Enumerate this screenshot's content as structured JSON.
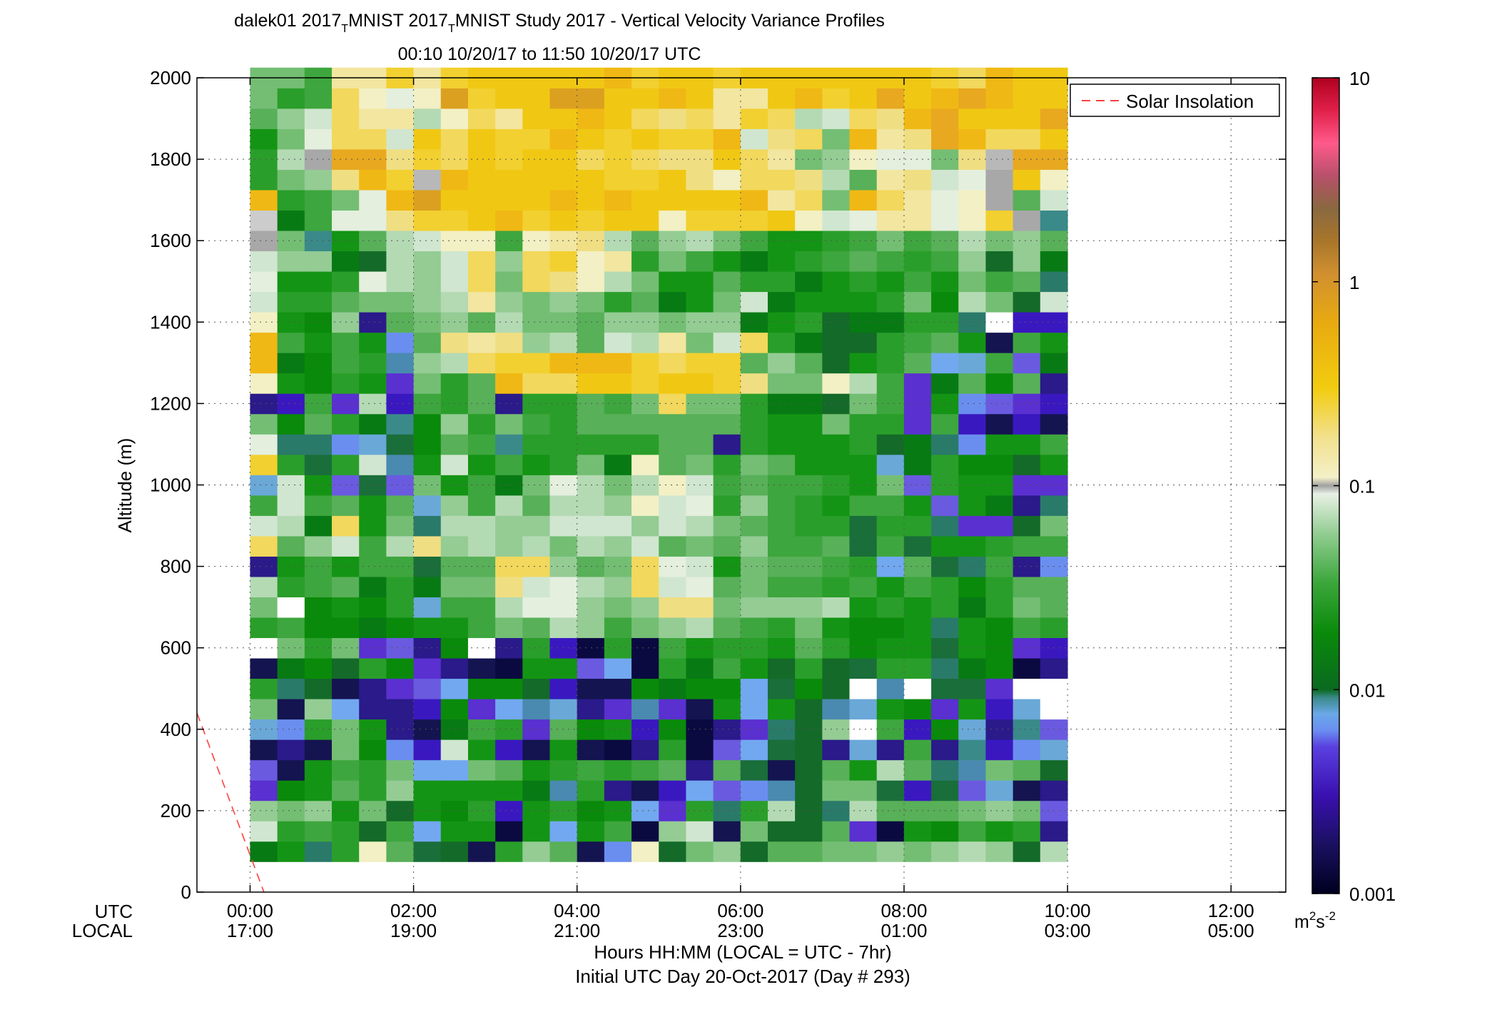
{
  "title": {
    "line1_part1": "dalek01 2017",
    "line1_sub1": "T",
    "line1_part2": "MNIST 2017",
    "line1_sub2": "T",
    "line1_part3": "MNIST Study 2017 - Vertical Velocity Variance Profiles",
    "line2": "00:10 10/20/17 to 11:50 10/20/17  UTC"
  },
  "ylabel": "Altitude (m)",
  "x_row_labels": {
    "utc": "UTC",
    "local": "LOCAL"
  },
  "xlabel_line1": "Hours HH:MM  (LOCAL = UTC - 7hr)",
  "xlabel_line2": "Initial UTC Day 20-Oct-2017 (Day # 293)",
  "legend": {
    "label": "Solar Insolation",
    "line_color": "#ff4040",
    "placement": "top-right"
  },
  "colorbar": {
    "scale": "log",
    "ticks": [
      "10",
      "1",
      "0.1",
      "0.01",
      "0.001"
    ],
    "unit_base": "m",
    "unit_sup1": "2",
    "unit_mid": "s",
    "unit_sup2": "-2"
  },
  "chart_data": {
    "type": "heatmap",
    "x_unit": "hours UTC",
    "y_unit": "m",
    "xlim": [
      -0.65,
      12.67
    ],
    "ylim": [
      0,
      2000
    ],
    "clim": [
      0.001,
      10
    ],
    "color_scale": "log",
    "grid": true,
    "x_ticks": [
      {
        "utc": "00:00",
        "local": "17:00",
        "value": 0
      },
      {
        "utc": "02:00",
        "local": "19:00",
        "value": 2
      },
      {
        "utc": "04:00",
        "local": "21:00",
        "value": 4
      },
      {
        "utc": "06:00",
        "local": "23:00",
        "value": 6
      },
      {
        "utc": "08:00",
        "local": "01:00",
        "value": 8
      },
      {
        "utc": "10:00",
        "local": "03:00",
        "value": 10
      },
      {
        "utc": "12:00",
        "local": "05:00",
        "value": 12
      }
    ],
    "y_ticks": [
      "0",
      "200",
      "400",
      "600",
      "800",
      "1000",
      "1200",
      "1400",
      "1600",
      "1800",
      "2000"
    ],
    "x_start_hours": 0.1667,
    "x_step_hours": 0.3333,
    "y_start_m": 100,
    "y_step_m": 50,
    "series": [
      {
        "name": "Solar Insolation",
        "x": [
          -0.65,
          0.17
        ],
        "y": [
          440,
          0
        ]
      }
    ],
    "values_log10": [
      "CKIMOIIHEKAEHJNPKFFQLHFMSSMKLKWXSEEDGHH",
      "DEHBGDFIDCHFAEDGJKKEIBIDCFDEDIHCEHJHIEH",
      "IFIDDCEIFBEBBFFICFDCCGFBBDBEDIHFFIWLKFF",
      "EEDGFHHBEEHBDGDKPGHEJEJEFFIGECDLHOTPPPN",
      "MEHEEBDBBEBCBCFFDDIKDCJDEDDHLEGLLSTPNMN",
      "GFDIHIDDBBFBEEFJHGEEDDEFGHGHJJJOSQOKNLQ",
      "IFDDHCEADCJDHCLOIIHDBBFHIGHIIIKQUVQRJMN",
      "JDBDBKCBBFBDFHGIJIDKGIEEJOIJKKMQRSPPMUQ",
      "DDEDHDFCBHAFFHGJJFFDFEGGPNGNPPMRRRRRPQR",
      "EIDDGHEFBFEHJOPIIJCFEHHSQOJIHIFSRRQQNRR",
      "IDDCDHEFDDEGLKPJIGHDEFEPQIHHPPMQRRRQRRR",
      "GEEEEDGCEDCJLLIHKJLEEEEPSJHIOQNRSRRSRUR",
      "GDBEFBBDBFHIIJGJKJJHEGGRSGGHMMOQRRPRSUR",
      "HFDEEDDHBDEFHIHIKIHCEGFRSKIEJNJRSQQQRRS",
      "MMDGFBEBBFHHIPPKIMJMEGHQQJIGHEGRRQPRPRQ",
      "HIEDGEBBCEFIOKLGKKMGGGPRPNHCDHIMRROQOSR",
      "HKEGHFEDBCDJOLKHJLKHGGHRQHIDDFJQROOQPRR",
      "IHEGGFDDBFEGHGDGHEFEDGHQQKIHGDHQRMRSNNQ",
      "GHEIGIEDFDEFIHHIGIGHEEEOGPCKECFQSPPKQNR",
      "GGJHHGEDDFDEIFGFFFFGDDCHIEDCEDDRNPNOPRR",
      "GFHIHGIBBEGHIFGFEEFDDDCHGCEDCEDMPOHPJSR",
      "HGIHGDICCIEDJEFGEDEDDHHMIDGDDFEKHJIHKQR",
      "HEJHDCAAABBBDFEEDFDDEEHJDDCDEGFLSGMSPRR",
      "IEGIJDFDBEDBEDDFEFHECEFFEECEDFHNPNLNOTR",
      "HDGHGFEBAEDDDFGHEDJCCEFGGFEHFEFNNOLOSRR",
      "IBGHGIBBBDDEEEDDFCEEDFDCEGEBDFGLLKHTTSQ",
      "JFHHIBEDFCDDCBDDDDDBDFCGDDDJHIJMMLOSRTP",
      "IDIFHGAAABBBEEFECCDBDFCBFLAHFGHQWWVPRSS",
      "IEHEGDBAAFDFHGEFHFDCDCEGEFGBGIIWGRTPRRR",
      "JDHDGDAAAFEEGGFFHFGDFDGGCDCKECGKKMTRTRR"
    ],
    "palette": {
      "A": "#ffffff",
      "B": "#0a8a0a",
      "C": "#087a14",
      "D": "#149414",
      "E": "#2a9e2a",
      "F": "#3ea63e",
      "G": "#58b058",
      "H": "#74be74",
      "I": "#94cc94",
      "J": "#b4dab4",
      "K": "#d0e6d0",
      "L": "#e4efde",
      "M": "#f2f0c4",
      "N": "#f2e6a0",
      "O": "#f0de82",
      "P": "#f2d85c",
      "Q": "#f2d030",
      "R": "#f0c814",
      "S": "#f0b814",
      "T": "#e8a820",
      "U": "#dca020",
      "V": "#b8b8b8",
      "W": "#a8a8a8",
      "X": "#cccccc",
      "a": "#0a0a40",
      "b": "#141450",
      "c": "#2a1a8a",
      "d": "#3a18c0",
      "e": "#5a30d0",
      "f": "#6a5ae0",
      "g": "#6a8ef0",
      "h": "#72a8f0",
      "i": "#6aa8d8",
      "j": "#4a8ab0",
      "k": "#3a8a8a",
      "l": "#2a7a6a",
      "m": "#1a6e3a",
      "n": "#146a28"
    },
    "overrides": [
      [
        0,
        14,
        "c"
      ],
      [
        0,
        18,
        "i"
      ],
      [
        0,
        22,
        "c"
      ],
      [
        0,
        6,
        "i"
      ],
      [
        0,
        9,
        "b"
      ],
      [
        0,
        3,
        "e"
      ],
      [
        0,
        4,
        "f"
      ],
      [
        0,
        5,
        "b"
      ],
      [
        1,
        4,
        "b"
      ],
      [
        1,
        6,
        "g"
      ],
      [
        1,
        7,
        "b"
      ],
      [
        1,
        8,
        "l"
      ],
      [
        1,
        5,
        "c"
      ],
      [
        1,
        20,
        "l"
      ],
      [
        1,
        22,
        "d"
      ],
      [
        2,
        0,
        "l"
      ],
      [
        2,
        5,
        "b"
      ],
      [
        2,
        8,
        "n"
      ],
      [
        2,
        19,
        "m"
      ],
      [
        2,
        20,
        "l"
      ],
      [
        2,
        30,
        "k"
      ],
      [
        3,
        7,
        "h"
      ],
      [
        3,
        8,
        "b"
      ],
      [
        3,
        18,
        "f"
      ],
      [
        3,
        20,
        "g"
      ],
      [
        3,
        22,
        "e"
      ],
      [
        3,
        9,
        "n"
      ],
      [
        4,
        1,
        "n"
      ],
      [
        4,
        7,
        "c"
      ],
      [
        4,
        8,
        "c"
      ],
      [
        4,
        10,
        "e"
      ],
      [
        4,
        18,
        "m"
      ],
      [
        4,
        20,
        "i"
      ],
      [
        4,
        26,
        "c"
      ],
      [
        4,
        29,
        "n"
      ],
      [
        5,
        2,
        "n"
      ],
      [
        5,
        5,
        "g"
      ],
      [
        5,
        6,
        "c"
      ],
      [
        5,
        7,
        "c"
      ],
      [
        5,
        8,
        "e"
      ],
      [
        5,
        10,
        "f"
      ],
      [
        5,
        18,
        "f"
      ],
      [
        5,
        19,
        "j"
      ],
      [
        5,
        20,
        "m"
      ],
      [
        5,
        21,
        "k"
      ],
      [
        5,
        22,
        "d"
      ],
      [
        5,
        23,
        "e"
      ],
      [
        5,
        24,
        "j"
      ],
      [
        5,
        25,
        "g"
      ],
      [
        6,
        0,
        "m"
      ],
      [
        6,
        1,
        "h"
      ],
      [
        6,
        4,
        "h"
      ],
      [
        6,
        5,
        "d"
      ],
      [
        6,
        6,
        "b"
      ],
      [
        6,
        7,
        "d"
      ],
      [
        6,
        8,
        "f"
      ],
      [
        6,
        9,
        "e"
      ],
      [
        6,
        10,
        "c"
      ],
      [
        6,
        12,
        "i"
      ],
      [
        6,
        14,
        "m"
      ],
      [
        6,
        16,
        "l"
      ],
      [
        6,
        17,
        "i"
      ],
      [
        7,
        0,
        "n"
      ],
      [
        7,
        4,
        "h"
      ],
      [
        7,
        8,
        "h"
      ],
      [
        7,
        9,
        "c"
      ],
      [
        8,
        0,
        "b"
      ],
      [
        8,
        7,
        "e"
      ],
      [
        8,
        9,
        "b"
      ],
      [
        9,
        1,
        "a"
      ],
      [
        9,
        2,
        "d"
      ],
      [
        9,
        5,
        "d"
      ],
      [
        9,
        7,
        "h"
      ],
      [
        9,
        9,
        "a"
      ],
      [
        9,
        10,
        "c"
      ],
      [
        9,
        20,
        "k"
      ],
      [
        9,
        22,
        "c"
      ],
      [
        10,
        5,
        "b"
      ],
      [
        10,
        6,
        "e"
      ],
      [
        10,
        7,
        "j"
      ],
      [
        10,
        8,
        "n"
      ],
      [
        11,
        1,
        "h"
      ],
      [
        11,
        3,
        "j"
      ],
      [
        11,
        7,
        "i"
      ],
      [
        11,
        8,
        "d"
      ],
      [
        11,
        10,
        "d"
      ],
      [
        12,
        0,
        "b"
      ],
      [
        12,
        5,
        "b"
      ],
      [
        12,
        7,
        "c"
      ],
      [
        12,
        8,
        "b"
      ],
      [
        12,
        9,
        "f"
      ],
      [
        12,
        10,
        "a"
      ],
      [
        13,
        0,
        "g"
      ],
      [
        13,
        3,
        "c"
      ],
      [
        13,
        5,
        "a"
      ],
      [
        13,
        7,
        "e"
      ],
      [
        13,
        8,
        "b"
      ],
      [
        13,
        9,
        "h"
      ],
      [
        14,
        1,
        "a"
      ],
      [
        14,
        2,
        "h"
      ],
      [
        14,
        3,
        "b"
      ],
      [
        14,
        5,
        "c"
      ],
      [
        14,
        6,
        "d"
      ],
      [
        14,
        7,
        "j"
      ],
      [
        14,
        9,
        "a"
      ],
      [
        14,
        10,
        "a"
      ],
      [
        15,
        0,
        "n"
      ],
      [
        15,
        2,
        "e"
      ],
      [
        15,
        3,
        "d"
      ],
      [
        15,
        7,
        "e"
      ],
      [
        16,
        3,
        "h"
      ],
      [
        16,
        4,
        "c"
      ],
      [
        16,
        5,
        "a"
      ],
      [
        16,
        6,
        "a"
      ],
      [
        16,
        7,
        "b"
      ],
      [
        17,
        1,
        "b"
      ],
      [
        17,
        2,
        "l"
      ],
      [
        17,
        3,
        "f"
      ],
      [
        17,
        5,
        "f"
      ],
      [
        17,
        6,
        "c"
      ],
      [
        17,
        20,
        "c"
      ],
      [
        18,
        0,
        "n"
      ],
      [
        18,
        3,
        "g"
      ],
      [
        18,
        4,
        "m"
      ],
      [
        18,
        5,
        "h"
      ],
      [
        18,
        6,
        "e"
      ],
      [
        18,
        7,
        "h"
      ],
      [
        18,
        8,
        "h"
      ],
      [
        19,
        1,
        "n"
      ],
      [
        19,
        3,
        "j"
      ],
      [
        19,
        4,
        "b"
      ],
      [
        19,
        5,
        "m"
      ],
      [
        19,
        6,
        "l"
      ],
      [
        19,
        8,
        "m"
      ],
      [
        19,
        9,
        "n"
      ],
      [
        20,
        1,
        "n"
      ],
      [
        20,
        2,
        "n"
      ],
      [
        20,
        3,
        "n"
      ],
      [
        20,
        4,
        "n"
      ],
      [
        20,
        5,
        "n"
      ],
      [
        20,
        6,
        "n"
      ],
      [
        20,
        7,
        "n"
      ],
      [
        21,
        2,
        "l"
      ],
      [
        21,
        5,
        "c"
      ],
      [
        21,
        7,
        "j"
      ],
      [
        21,
        8,
        "n"
      ],
      [
        21,
        9,
        "n"
      ],
      [
        21,
        22,
        "n"
      ],
      [
        21,
        24,
        "n"
      ],
      [
        21,
        25,
        "n"
      ],
      [
        21,
        26,
        "n"
      ],
      [
        22,
        1,
        "e"
      ],
      [
        22,
        5,
        "i"
      ],
      [
        22,
        7,
        "i"
      ],
      [
        22,
        9,
        "m"
      ],
      [
        22,
        15,
        "m"
      ],
      [
        22,
        16,
        "m"
      ],
      [
        22,
        25,
        "n"
      ],
      [
        23,
        1,
        "a"
      ],
      [
        23,
        3,
        "m"
      ],
      [
        23,
        5,
        "c"
      ],
      [
        23,
        8,
        "j"
      ],
      [
        23,
        14,
        "h"
      ],
      [
        23,
        19,
        "i"
      ],
      [
        23,
        20,
        "n"
      ],
      [
        24,
        3,
        "d"
      ],
      [
        24,
        6,
        "d"
      ],
      [
        24,
        15,
        "m"
      ],
      [
        24,
        18,
        "f"
      ],
      [
        24,
        21,
        "e"
      ],
      [
        24,
        22,
        "e"
      ],
      [
        24,
        23,
        "e"
      ],
      [
        25,
        3,
        "m"
      ],
      [
        25,
        4,
        "l"
      ],
      [
        25,
        5,
        "c"
      ],
      [
        25,
        7,
        "e"
      ],
      [
        25,
        8,
        "m"
      ],
      [
        25,
        9,
        "l"
      ],
      [
        25,
        10,
        "m"
      ],
      [
        25,
        11,
        "l"
      ],
      [
        25,
        14,
        "m"
      ],
      [
        25,
        16,
        "l"
      ],
      [
        25,
        17,
        "f"
      ],
      [
        25,
        20,
        "l"
      ],
      [
        25,
        24,
        "h"
      ],
      [
        26,
        3,
        "f"
      ],
      [
        26,
        4,
        "j"
      ],
      [
        26,
        5,
        "k"
      ],
      [
        26,
        6,
        "i"
      ],
      [
        26,
        8,
        "m"
      ],
      [
        26,
        14,
        "l"
      ],
      [
        26,
        16,
        "e"
      ],
      [
        26,
        20,
        "g"
      ],
      [
        26,
        21,
        "d"
      ],
      [
        26,
        22,
        "g"
      ],
      [
        26,
        24,
        "i"
      ],
      [
        26,
        26,
        "l"
      ],
      [
        27,
        3,
        "i"
      ],
      [
        27,
        5,
        "d"
      ],
      [
        27,
        6,
        "c"
      ],
      [
        27,
        7,
        "d"
      ],
      [
        27,
        8,
        "e"
      ],
      [
        27,
        16,
        "e"
      ],
      [
        27,
        21,
        "b"
      ],
      [
        27,
        22,
        "f"
      ],
      [
        27,
        25,
        "b"
      ],
      [
        27,
        29,
        "n"
      ],
      [
        28,
        0,
        "n"
      ],
      [
        28,
        3,
        "b"
      ],
      [
        28,
        5,
        "g"
      ],
      [
        28,
        6,
        "k"
      ],
      [
        28,
        7,
        "i"
      ],
      [
        28,
        9,
        "a"
      ],
      [
        28,
        10,
        "e"
      ],
      [
        28,
        14,
        "c"
      ],
      [
        28,
        16,
        "n"
      ],
      [
        28,
        17,
        "c"
      ],
      [
        28,
        18,
        "e"
      ],
      [
        28,
        19,
        "n"
      ],
      [
        28,
        21,
        "d"
      ],
      [
        28,
        22,
        "e"
      ],
      [
        28,
        24,
        "f"
      ],
      [
        28,
        26,
        "d"
      ],
      [
        28,
        27,
        "n"
      ],
      [
        29,
        1,
        "c"
      ],
      [
        29,
        2,
        "f"
      ],
      [
        29,
        3,
        "c"
      ],
      [
        29,
        4,
        "n"
      ],
      [
        29,
        5,
        "i"
      ],
      [
        29,
        6,
        "f"
      ],
      [
        29,
        9,
        "c"
      ],
      [
        29,
        10,
        "d"
      ],
      [
        29,
        14,
        "g"
      ],
      [
        29,
        17,
        "l"
      ],
      [
        29,
        18,
        "e"
      ],
      [
        29,
        21,
        "b"
      ],
      [
        29,
        22,
        "d"
      ],
      [
        29,
        23,
        "c"
      ],
      [
        29,
        26,
        "d"
      ],
      [
        29,
        28,
        "l"
      ],
      [
        29,
        31,
        "k"
      ]
    ]
  }
}
